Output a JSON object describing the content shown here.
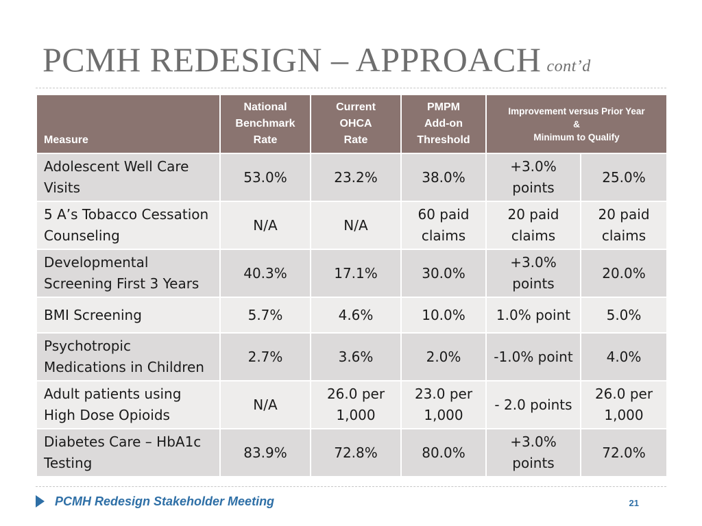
{
  "slide": {
    "title": "PCMH REDESIGN – APPROACH",
    "title_suffix": "cont’d"
  },
  "table": {
    "headers": {
      "measure": "Measure",
      "national_benchmark": [
        "National",
        "Benchmark",
        "Rate"
      ],
      "current_ohca": [
        "Current",
        "OHCA",
        "Rate"
      ],
      "pmpm": [
        "PMPM",
        "Add-on",
        "Threshold"
      ],
      "improvement": [
        "Improvement versus Prior Year",
        "&",
        "Minimum to Qualify"
      ]
    },
    "rows": [
      {
        "measure": [
          "Adolescent Well Care",
          "Visits"
        ],
        "national": [
          "53.0%"
        ],
        "current": [
          "23.2%"
        ],
        "pmpm": [
          "38.0%"
        ],
        "improvement": [
          "+3.0%",
          "points"
        ],
        "minimum": [
          "25.0%"
        ]
      },
      {
        "measure": [
          "5 A’s Tobacco Cessation",
          "Counseling"
        ],
        "national": [
          "N/A"
        ],
        "current": [
          "N/A"
        ],
        "pmpm": [
          "60 paid",
          "claims"
        ],
        "improvement": [
          "20 paid",
          "claims"
        ],
        "minimum": [
          "20 paid",
          "claims"
        ]
      },
      {
        "measure": [
          "Developmental",
          "Screening First 3 Years"
        ],
        "national": [
          "40.3%"
        ],
        "current": [
          "17.1%"
        ],
        "pmpm": [
          "30.0%"
        ],
        "improvement": [
          "+3.0%",
          "points"
        ],
        "minimum": [
          "20.0%"
        ]
      },
      {
        "measure": [
          "BMI Screening"
        ],
        "national": [
          "5.7%"
        ],
        "current": [
          "4.6%"
        ],
        "pmpm": [
          "10.0%"
        ],
        "improvement": [
          "1.0% point"
        ],
        "minimum": [
          "5.0%"
        ]
      },
      {
        "measure": [
          "Psychotropic",
          "Medications in Children"
        ],
        "national": [
          "2.7%"
        ],
        "current": [
          "3.6%"
        ],
        "pmpm": [
          "2.0%"
        ],
        "improvement": [
          "-1.0% point"
        ],
        "minimum": [
          "4.0%"
        ]
      },
      {
        "measure": [
          "Adult patients using",
          "High Dose Opioids"
        ],
        "national": [
          "N/A"
        ],
        "current": [
          "26.0 per",
          "1,000"
        ],
        "pmpm": [
          "23.0 per",
          "1,000"
        ],
        "improvement": [
          "- 2.0 points"
        ],
        "minimum": [
          "26.0 per",
          "1,000"
        ]
      },
      {
        "measure": [
          "Diabetes Care – HbA1c",
          "Testing"
        ],
        "national": [
          "83.9%"
        ],
        "current": [
          "72.8%"
        ],
        "pmpm": [
          "80.0%"
        ],
        "improvement": [
          "+3.0%",
          "points"
        ],
        "minimum": [
          "72.0%"
        ]
      }
    ]
  },
  "footer": {
    "text": "PCMH Redesign Stakeholder Meeting",
    "page_number": "21"
  },
  "colors": {
    "header_bg": "#8a7470",
    "row_shade": "#dcdada",
    "row_light": "#eeedec",
    "title": "#6e6e6e",
    "footer_accent": "#2e6fa6"
  }
}
